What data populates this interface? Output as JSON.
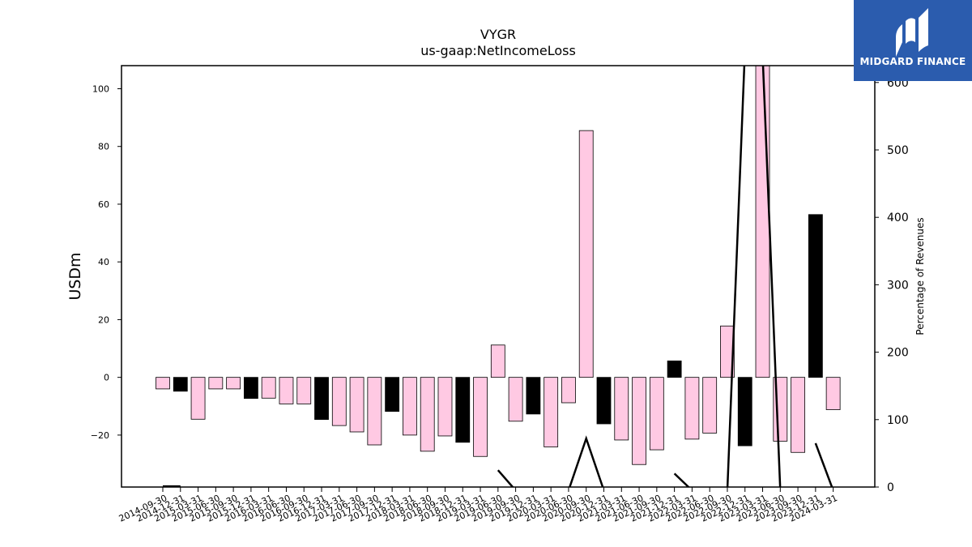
{
  "brand": {
    "name": "MIDGARD FINANCE",
    "bg_color": "#2b5cae",
    "icon": "midgard-logo-icon"
  },
  "chart_data": {
    "type": "bar",
    "title": "VYGR",
    "subtitle": "us-gaap:NetIncomeLoss",
    "ylabel": "USDm",
    "y2label": "Percentage of Revenues",
    "ylim": [
      -38,
      108
    ],
    "y2lim": [
      0,
      625
    ],
    "yticks": [
      -20,
      0,
      20,
      40,
      60,
      80,
      100
    ],
    "y2ticks": [
      0,
      100,
      200,
      300,
      400,
      500,
      600
    ],
    "grid": false,
    "colors": {
      "pink": "#ffc9e3",
      "black": "#000000",
      "line": "#000000"
    },
    "categories": [
      "2014-09-30",
      "2014-12-31",
      "2015-03-31",
      "2015-06-30",
      "2015-09-30",
      "2015-12-31",
      "2016-03-31",
      "2016-06-30",
      "2016-09-30",
      "2016-12-31",
      "2017-03-31",
      "2017-06-30",
      "2017-09-30",
      "2017-12-31",
      "2018-03-31",
      "2018-06-30",
      "2018-09-30",
      "2018-12-31",
      "2019-03-31",
      "2019-06-30",
      "2019-09-30",
      "2019-12-31",
      "2020-03-31",
      "2020-06-30",
      "2020-09-30",
      "2020-12-31",
      "2021-03-31",
      "2021-06-30",
      "2021-09-30",
      "2021-12-31",
      "2022-03-31",
      "2022-06-30",
      "2022-09-30",
      "2022-12-31",
      "2023-03-31",
      "2023-06-30",
      "2023-09-30",
      "2023-12-31",
      "2024-03-31"
    ],
    "series": [
      {
        "values": [
          -4,
          -4.8,
          -14.5,
          -4,
          -4,
          -7.3,
          -7.2,
          -9.2,
          -9.2,
          -14.6,
          -16.7,
          -18.9,
          -23.4,
          -11.8,
          -20,
          -25.6,
          -20.3,
          -22.5,
          -27.4,
          11.2,
          -15.2,
          -12.7,
          -24.1,
          -8.8,
          85.5,
          -16.1,
          -21.7,
          -30.2,
          -25.1,
          5.7,
          -21.4,
          -19.3,
          17.8,
          -23.7,
          108,
          -22.1,
          -26,
          56.4,
          -11.2
        ],
        "colors": [
          "pink",
          "black",
          "pink",
          "pink",
          "pink",
          "black",
          "pink",
          "pink",
          "pink",
          "black",
          "pink",
          "pink",
          "pink",
          "black",
          "pink",
          "pink",
          "pink",
          "black",
          "pink",
          "pink",
          "pink",
          "black",
          "pink",
          "pink",
          "pink",
          "black",
          "pink",
          "pink",
          "pink",
          "black",
          "pink",
          "pink",
          "pink",
          "black",
          "pink",
          "pink",
          "pink",
          "black",
          "pink"
        ]
      },
      {
        "name": "Percentage of Revenues",
        "axis": "right",
        "type": "line",
        "values": [
          1,
          1,
          null,
          null,
          null,
          null,
          null,
          null,
          null,
          null,
          null,
          null,
          null,
          null,
          null,
          null,
          null,
          null,
          null,
          25,
          -5,
          null,
          null,
          -5,
          72,
          -5,
          null,
          null,
          null,
          20,
          -5,
          null,
          -5,
          650,
          640,
          -5,
          null,
          65,
          -5
        ]
      }
    ]
  }
}
